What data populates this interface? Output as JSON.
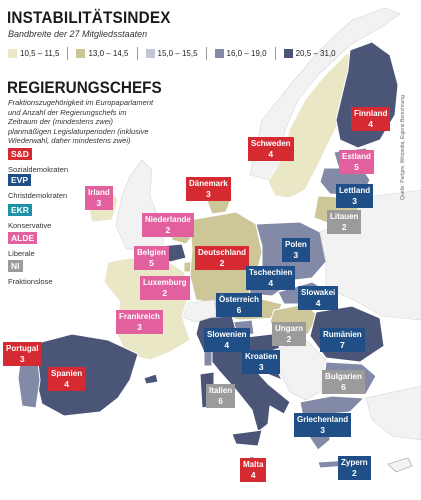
{
  "header": {
    "title": "INSTABILITÄTSINDEX",
    "subtitle": "Bandbreite der 27 Mitgliedsstaaten"
  },
  "legend": [
    {
      "label": "10,5 – 11,5",
      "color": "#eae7c6"
    },
    {
      "label": "13,0 – 14,5",
      "color": "#cdc699"
    },
    {
      "label": "15,0 – 15,5",
      "color": "#c3c6d6"
    },
    {
      "label": "16,0 – 19,0",
      "color": "#828aa7"
    },
    {
      "label": "20,5 – 31,0",
      "color": "#4a5578"
    }
  ],
  "section": {
    "title": "REGIERUNGSCHEFS",
    "description": "Fraktionszugehörigkeit im Europaparlament und Anzahl der Regierungschefs im Zeitraum der (mindestens zwei) planmäßigen Legislaturperioden (inklusive Wiederwahl, daher mindestens zwei)"
  },
  "parties": [
    {
      "abbr": "S&D",
      "desc": "Sozialdemokraten",
      "color": "#d62a33"
    },
    {
      "abbr": "EVP",
      "desc": "Christdemokraten",
      "color": "#1f4f86"
    },
    {
      "abbr": "EKR",
      "desc": "Konservative",
      "color": "#1e93a8"
    },
    {
      "abbr": "ALDE",
      "desc": "Liberale",
      "color": "#e2609d"
    },
    {
      "abbr": "NI",
      "desc": "Fraktionslose",
      "color": "#9b9b9b"
    }
  ],
  "countries": [
    {
      "name": "Finnland",
      "count": "4",
      "party": "S&D"
    },
    {
      "name": "Schweden",
      "count": "4",
      "party": "S&D"
    },
    {
      "name": "Estland",
      "count": "5",
      "party": "ALDE"
    },
    {
      "name": "Lettland",
      "count": "3",
      "party": "EVP"
    },
    {
      "name": "Litauen",
      "count": "2",
      "party": "NI"
    },
    {
      "name": "Irland",
      "count": "3",
      "party": "ALDE"
    },
    {
      "name": "Dänemark",
      "count": "3",
      "party": "S&D"
    },
    {
      "name": "Niederlande",
      "count": "2",
      "party": "ALDE"
    },
    {
      "name": "Polen",
      "count": "3",
      "party": "EVP"
    },
    {
      "name": "Belgien",
      "count": "5",
      "party": "ALDE"
    },
    {
      "name": "Deutschland",
      "count": "2",
      "party": "S&D"
    },
    {
      "name": "Luxemburg",
      "count": "2",
      "party": "ALDE"
    },
    {
      "name": "Tschechien",
      "count": "4",
      "party": "EVP"
    },
    {
      "name": "Slowakei",
      "count": "4",
      "party": "EVP"
    },
    {
      "name": "Frankreich",
      "count": "3",
      "party": "ALDE"
    },
    {
      "name": "Österreich",
      "count": "6",
      "party": "S&D"
    },
    {
      "name": "Ungarn",
      "count": "2",
      "party": "NI"
    },
    {
      "name": "Rumänien",
      "count": "7",
      "party": "EVP"
    },
    {
      "name": "Slowenien",
      "count": "4",
      "party": "EVP"
    },
    {
      "name": "Portugal",
      "count": "3",
      "party": "S&D"
    },
    {
      "name": "Spanien",
      "count": "4",
      "party": "S&D"
    },
    {
      "name": "Kroatien",
      "count": "3",
      "party": "EVP"
    },
    {
      "name": "Bulgarien",
      "count": "6",
      "party": "NI"
    },
    {
      "name": "Italien",
      "count": "6",
      "party": "NI"
    },
    {
      "name": "Griechenland",
      "count": "3",
      "party": "EVP"
    },
    {
      "name": "Malta",
      "count": "4",
      "party": "S&D"
    },
    {
      "name": "Zypern",
      "count": "2",
      "party": "EVP"
    }
  ],
  "credit": "Quelle: Parlgov, Wikipedia, Eigene Berechnung"
}
